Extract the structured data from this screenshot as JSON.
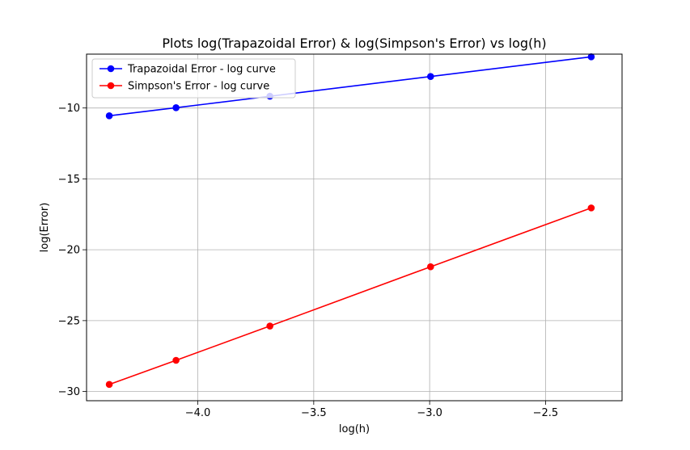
{
  "chart_data": {
    "type": "line",
    "title": "Plots log(Trapazoidal Error) & log(Simpson's Error) vs log(h)",
    "xlabel": "log(h)",
    "ylabel": "log(Error)",
    "xlim": [
      -4.48,
      -2.17
    ],
    "ylim": [
      -30.65,
      -6.2
    ],
    "xticks": [
      -4.0,
      -3.5,
      -3.0,
      -2.5
    ],
    "xtick_labels": [
      "−4.0",
      "−3.5",
      "−3.0",
      "−2.5"
    ],
    "yticks": [
      -30,
      -25,
      -20,
      -15,
      -10
    ],
    "ytick_labels": [
      "−30",
      "−25",
      "−20",
      "−15",
      "−10"
    ],
    "grid": true,
    "legend_position": "top-left",
    "series": [
      {
        "name": "Trapazoidal Error - log curve",
        "color": "#0000ff",
        "x": [
          -4.382,
          -4.094,
          -3.689,
          -2.996,
          -2.303
        ],
        "y": [
          -10.55,
          -9.98,
          -9.17,
          -7.78,
          -6.39
        ]
      },
      {
        "name": "Simpson's Error - log curve",
        "color": "#ff0000",
        "x": [
          -4.382,
          -4.094,
          -3.689,
          -2.996,
          -2.303
        ],
        "y": [
          -29.5,
          -27.8,
          -25.38,
          -21.2,
          -17.05
        ]
      }
    ]
  }
}
